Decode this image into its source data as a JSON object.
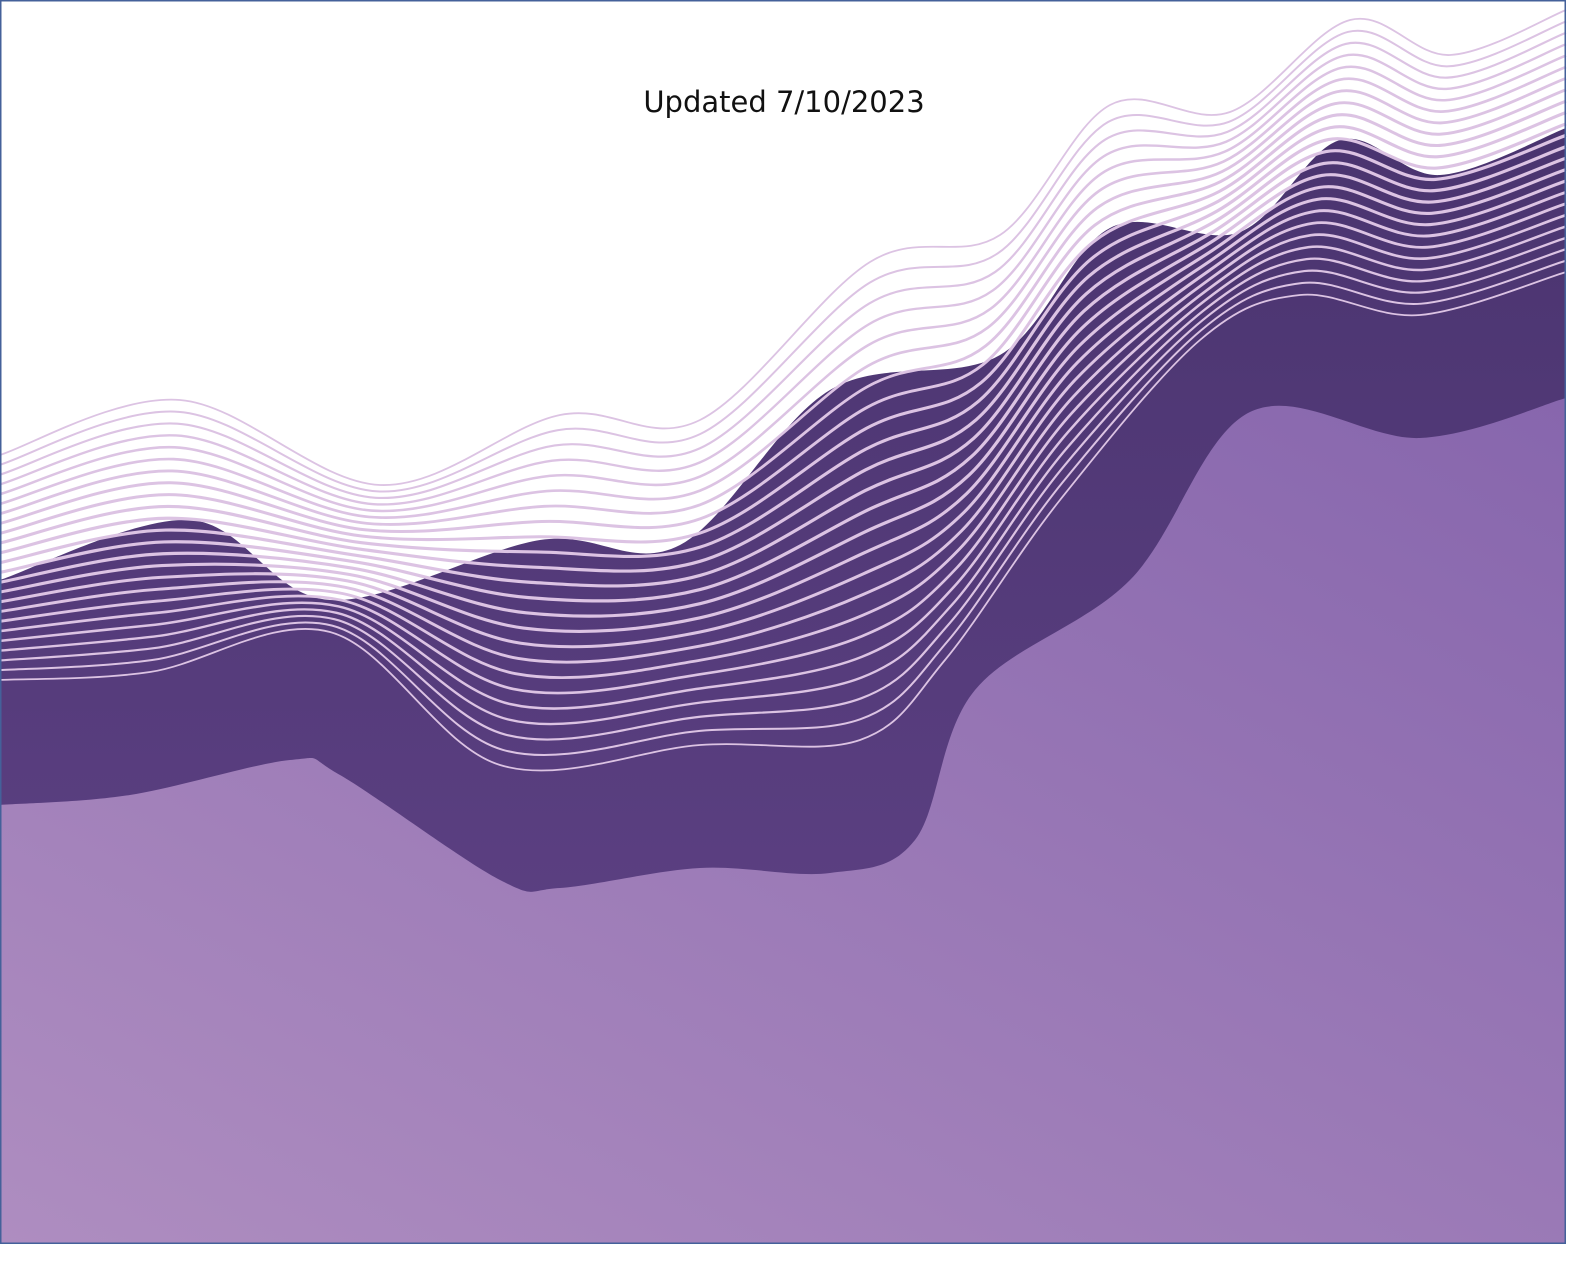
{
  "header": {
    "updated": "Updated 7/10/2023"
  }
}
